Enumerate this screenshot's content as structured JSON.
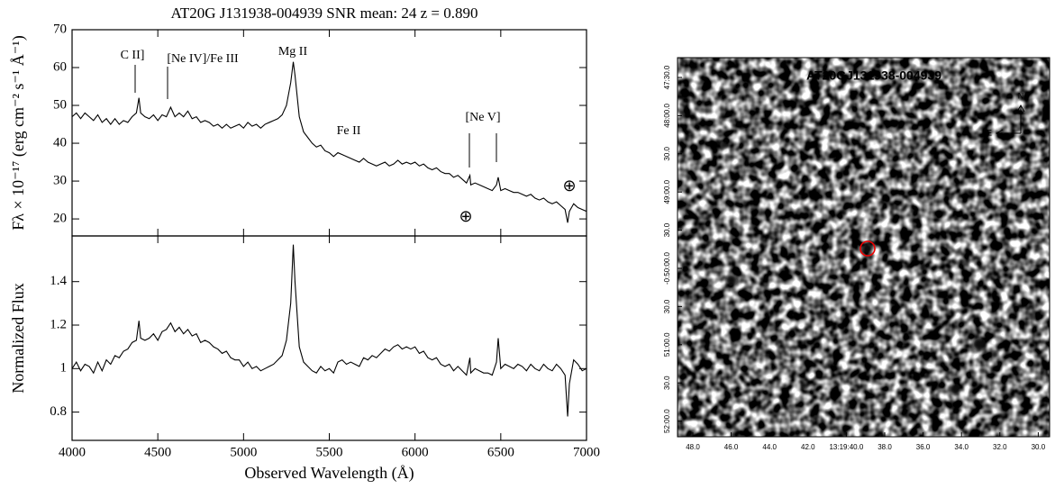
{
  "chart_data": [
    {
      "type": "line",
      "title": "AT20G J131938-004939 SNR mean: 24 z = 0.890",
      "ylabel": "Fλ × 10⁻¹⁷ (erg cm⁻² s⁻¹ Å⁻¹)",
      "annotations": [
        "C II]",
        "[Ne IV]/Fe III",
        "Mg II",
        "Fe II",
        "[Ne V]",
        "⊕",
        "⊕"
      ],
      "xlim": [
        4000,
        7000
      ],
      "xticks": [
        4000,
        4500,
        5000,
        5500,
        6000,
        6500,
        7000
      ],
      "ylim": [
        15.5,
        70
      ],
      "yticks": [
        20,
        30,
        40,
        50,
        60,
        70
      ],
      "color": "#000000",
      "x": [
        4000,
        4025,
        4050,
        4075,
        4100,
        4125,
        4150,
        4175,
        4200,
        4225,
        4250,
        4275,
        4300,
        4325,
        4350,
        4375,
        4390,
        4400,
        4425,
        4450,
        4475,
        4500,
        4525,
        4550,
        4575,
        4600,
        4625,
        4650,
        4675,
        4700,
        4725,
        4750,
        4775,
        4800,
        4825,
        4850,
        4875,
        4900,
        4925,
        4950,
        4975,
        5000,
        5025,
        5050,
        5075,
        5100,
        5125,
        5150,
        5175,
        5200,
        5225,
        5250,
        5275,
        5290,
        5300,
        5325,
        5350,
        5375,
        5400,
        5425,
        5450,
        5475,
        5500,
        5525,
        5550,
        5575,
        5600,
        5625,
        5650,
        5675,
        5700,
        5725,
        5750,
        5775,
        5800,
        5825,
        5850,
        5875,
        5900,
        5925,
        5950,
        5975,
        6000,
        6025,
        6050,
        6075,
        6100,
        6125,
        6150,
        6175,
        6200,
        6225,
        6250,
        6275,
        6300,
        6320,
        6325,
        6350,
        6375,
        6400,
        6425,
        6450,
        6475,
        6485,
        6500,
        6525,
        6550,
        6575,
        6600,
        6625,
        6650,
        6675,
        6700,
        6725,
        6750,
        6775,
        6800,
        6825,
        6850,
        6875,
        6890,
        6900,
        6925,
        6950,
        6975,
        7000
      ],
      "values": [
        47,
        48,
        46.5,
        48,
        47,
        46,
        47.5,
        45.5,
        46.5,
        45,
        46.5,
        45,
        46,
        45.5,
        47,
        48,
        52,
        48,
        47,
        46.5,
        47.5,
        46,
        47.5,
        47,
        49.5,
        47,
        48,
        47,
        48.5,
        46.5,
        47,
        45.5,
        46,
        45.5,
        44.5,
        45,
        44,
        45,
        44,
        44.5,
        45,
        44,
        45.5,
        44.5,
        45,
        44,
        45,
        45.5,
        46,
        46.5,
        47.5,
        50,
        56,
        61.5,
        58,
        47,
        43,
        41.5,
        40,
        39,
        39.5,
        38,
        37.5,
        36.5,
        37.5,
        37,
        36.5,
        36,
        35.5,
        35,
        36,
        35,
        34.5,
        34,
        34.5,
        35,
        34,
        34.5,
        35.5,
        34.5,
        35,
        34.5,
        35,
        34,
        34.5,
        33.5,
        33,
        33.5,
        32.5,
        32,
        32,
        31,
        31.5,
        30.5,
        29.5,
        31.5,
        29,
        29.5,
        29,
        28.5,
        28,
        27.5,
        29,
        31,
        27.5,
        28,
        27.5,
        27,
        27,
        26.5,
        26,
        26.5,
        25.5,
        25,
        25.5,
        24.5,
        24,
        24.5,
        23.5,
        22.5,
        19,
        22,
        24,
        23,
        22.5,
        22
      ]
    },
    {
      "type": "line",
      "xlabel": "Observed Wavelength (Å)",
      "ylabel": "Normalized Flux",
      "xlim": [
        4000,
        7000
      ],
      "xticks": [
        4000,
        4500,
        5000,
        5500,
        6000,
        6500,
        7000
      ],
      "ylim": [
        0.67,
        1.61
      ],
      "yticks": [
        0.8,
        1,
        1.2,
        1.4
      ],
      "color": "#000000",
      "x": [
        4000,
        4025,
        4050,
        4075,
        4100,
        4125,
        4150,
        4175,
        4200,
        4225,
        4250,
        4275,
        4300,
        4325,
        4350,
        4375,
        4390,
        4400,
        4425,
        4450,
        4475,
        4500,
        4525,
        4550,
        4575,
        4600,
        4625,
        4650,
        4675,
        4700,
        4725,
        4750,
        4775,
        4800,
        4825,
        4850,
        4875,
        4900,
        4925,
        4950,
        4975,
        5000,
        5025,
        5050,
        5075,
        5100,
        5125,
        5150,
        5175,
        5200,
        5225,
        5250,
        5275,
        5290,
        5300,
        5325,
        5350,
        5375,
        5400,
        5425,
        5450,
        5475,
        5500,
        5525,
        5550,
        5575,
        5600,
        5625,
        5650,
        5675,
        5700,
        5725,
        5750,
        5775,
        5800,
        5825,
        5850,
        5875,
        5900,
        5925,
        5950,
        5975,
        6000,
        6025,
        6050,
        6075,
        6100,
        6125,
        6150,
        6175,
        6200,
        6225,
        6250,
        6275,
        6300,
        6320,
        6325,
        6350,
        6375,
        6400,
        6425,
        6450,
        6475,
        6485,
        6500,
        6525,
        6550,
        6575,
        6600,
        6625,
        6650,
        6675,
        6700,
        6725,
        6750,
        6775,
        6800,
        6825,
        6850,
        6875,
        6890,
        6900,
        6925,
        6950,
        6975,
        7000
      ],
      "values": [
        1.0,
        1.03,
        0.99,
        1.02,
        1.01,
        0.98,
        1.03,
        0.99,
        1.04,
        1.02,
        1.06,
        1.05,
        1.08,
        1.09,
        1.12,
        1.13,
        1.22,
        1.14,
        1.13,
        1.14,
        1.16,
        1.13,
        1.17,
        1.18,
        1.21,
        1.17,
        1.19,
        1.16,
        1.18,
        1.15,
        1.16,
        1.12,
        1.13,
        1.12,
        1.1,
        1.09,
        1.07,
        1.08,
        1.05,
        1.04,
        1.04,
        1.01,
        1.03,
        1.0,
        1.01,
        0.99,
        1.0,
        1.01,
        1.02,
        1.04,
        1.06,
        1.13,
        1.3,
        1.57,
        1.4,
        1.1,
        1.03,
        1.01,
        0.99,
        0.98,
        1.01,
        0.99,
        1.0,
        0.98,
        1.03,
        1.04,
        1.02,
        1.03,
        1.02,
        1.01,
        1.05,
        1.04,
        1.06,
        1.05,
        1.07,
        1.09,
        1.08,
        1.1,
        1.11,
        1.09,
        1.1,
        1.09,
        1.1,
        1.07,
        1.08,
        1.05,
        1.04,
        1.05,
        1.02,
        1.01,
        1.02,
        0.99,
        1.01,
        0.99,
        0.97,
        1.05,
        0.98,
        1.0,
        0.99,
        0.98,
        0.98,
        0.97,
        1.03,
        1.14,
        1.0,
        1.02,
        1.01,
        1.0,
        1.02,
        1.01,
        0.99,
        1.02,
        1.0,
        0.99,
        1.02,
        1.0,
        0.99,
        1.02,
        1.0,
        0.97,
        0.78,
        0.93,
        1.04,
        1.02,
        0.99,
        1.0
      ]
    }
  ],
  "image_panel": {
    "title": "AT20GJ131938-004939",
    "north": "N",
    "east": "E",
    "dec_labels": [
      "47:30.0",
      "48:00.0",
      "30.0",
      "49:00.0",
      "30.0",
      "-0:50:00.0",
      "30.0",
      "51:00.0",
      "30.0",
      "52:00.0"
    ],
    "ra_labels": [
      "48.0",
      "46.0",
      "44.0",
      "42.0",
      "13:19:40.0",
      "38.0",
      "36.0",
      "34.0",
      "32.0",
      "30.0"
    ]
  }
}
